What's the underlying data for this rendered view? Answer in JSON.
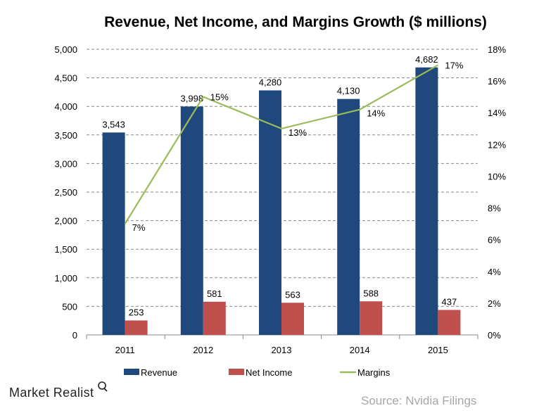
{
  "chart_data": {
    "type": "bar",
    "title": "Revenue, Net Income, and Margins Growth ($ millions)",
    "categories": [
      "2011",
      "2012",
      "2013",
      "2014",
      "2015"
    ],
    "series": [
      {
        "name": "Revenue",
        "type": "bar",
        "axis": "left",
        "color": "#1F497D",
        "values": [
          3543,
          3998,
          4280,
          4130,
          4682
        ],
        "labels": [
          "3,543",
          "3,998",
          "4,280",
          "4,130",
          "4,682"
        ]
      },
      {
        "name": "Net Income",
        "type": "bar",
        "axis": "left",
        "color": "#C0504D",
        "values": [
          253,
          581,
          563,
          588,
          437
        ],
        "labels": [
          "253",
          "581",
          "563",
          "588",
          "437"
        ]
      },
      {
        "name": "Margins",
        "type": "line",
        "axis": "right",
        "color": "#9BBB59",
        "values": [
          7,
          15,
          13,
          14.2,
          17
        ],
        "labels": [
          "7%",
          "15%",
          "13%",
          "14%",
          "17%"
        ]
      }
    ],
    "y_left": {
      "ylim": [
        0,
        5000
      ],
      "ticks": [
        "0",
        "500",
        "1,000",
        "1,500",
        "2,000",
        "2,500",
        "3,000",
        "3,500",
        "4,000",
        "4,500",
        "5,000"
      ]
    },
    "y_right": {
      "ylim": [
        0,
        18
      ],
      "ticks": [
        "0%",
        "2%",
        "4%",
        "6%",
        "8%",
        "10%",
        "12%",
        "14%",
        "16%",
        "18%"
      ]
    },
    "grid": "horizontal dashed",
    "legend": "bottom"
  },
  "branding": {
    "logo": "Market Realist",
    "source": "Source: Nvidia Filings"
  }
}
